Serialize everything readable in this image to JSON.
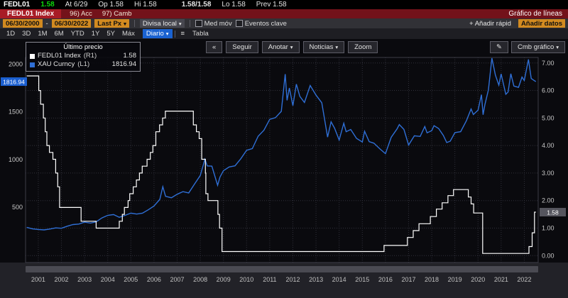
{
  "colors": {
    "amber": "#d28a20",
    "green": "#0bd90b",
    "function_bar_red": "#73121a",
    "accent_blue": "#1a62d1",
    "fedl01_line": "#ffffff",
    "xau_line": "#2f6fd6"
  },
  "top_bar": {
    "ticker": "FEDL01",
    "last": "1.58",
    "at": "At 6/29",
    "open": "Op 1.58",
    "high": "Hi 1.58",
    "bid_ask": "1.58/1.58",
    "low": "Lo 1.58",
    "prev": "Prev 1.58"
  },
  "function_bar": {
    "security_tab": "FEDL01 Index",
    "menu_acc": "96) Acc",
    "menu_camb": "97) Camb",
    "function_title": "Gráfico de líneas"
  },
  "settings_bar": {
    "date_from": "06/30/2000",
    "date_separator": "-",
    "date_to": "06/30/2022",
    "price_type": "Last Px",
    "currency": "Divisa local",
    "mov_avg_label": "Med móv",
    "key_events_label": "Eventos clave",
    "add_quick": "+ Añadir rápid",
    "add_data": "Añadir datos"
  },
  "period_bar": {
    "periods": [
      "1D",
      "3D",
      "1M",
      "6M",
      "YTD",
      "1Y",
      "5Y",
      "Máx"
    ],
    "frequency": "Diario",
    "view_icon": "≡",
    "table_label": "Tabla"
  },
  "chart_toolbar": {
    "collapse_icon": "«",
    "follow": "Seguir",
    "annotate": "Anotar",
    "news": "Noticias",
    "zoom": "Zoom",
    "edit_icon": "✎",
    "chart_type": "Cmb gráfico"
  },
  "legend": {
    "title": "Último precio",
    "rows": [
      {
        "label": "FEDL01 Index",
        "axis": "(R1)",
        "value": "1.58",
        "color": "#ffffff"
      },
      {
        "label": "XAU Curncy",
        "axis": "(L1)",
        "value": "1816.94",
        "color": "#2f6fd6"
      }
    ]
  },
  "chart_data": {
    "type": "line",
    "title": "FEDL01 Index vs XAU Curncy, 06/30/2000 - 06/30/2022, daily",
    "x_min": 2000.45,
    "x_max": 2022.6,
    "x_ticks": [
      2001,
      2002,
      2003,
      2004,
      2005,
      2006,
      2007,
      2008,
      2009,
      2010,
      2011,
      2012,
      2013,
      2014,
      2015,
      2016,
      2017,
      2018,
      2019,
      2020,
      2021,
      2022
    ],
    "left_axis": {
      "name": "XAU Curncy (L1)",
      "min": -80,
      "max": 2070,
      "ticks": [
        500,
        1000,
        1500,
        2000
      ]
    },
    "right_axis": {
      "name": "FEDL01 Index (R1)",
      "min": -0.25,
      "max": 7.2,
      "ticks": [
        0,
        1,
        2,
        3,
        4,
        5,
        6,
        7
      ]
    },
    "grid": true,
    "legend_position": "top-left",
    "series": [
      {
        "id": "xau",
        "name": "XAU Curncy (L1)",
        "axis": "left",
        "color": "#2f6fd6",
        "width": 1.4,
        "step": false,
        "x": [
          2000.5,
          2000.75,
          2001.0,
          2001.25,
          2001.5,
          2001.75,
          2002.0,
          2002.25,
          2002.5,
          2002.75,
          2003.0,
          2003.25,
          2003.5,
          2003.75,
          2004.0,
          2004.25,
          2004.5,
          2004.75,
          2005.0,
          2005.25,
          2005.5,
          2005.75,
          2006.0,
          2006.25,
          2006.38,
          2006.5,
          2006.75,
          2007.0,
          2007.25,
          2007.5,
          2007.75,
          2008.0,
          2008.2,
          2008.3,
          2008.5,
          2008.75,
          2008.85,
          2009.0,
          2009.25,
          2009.5,
          2009.75,
          2010.0,
          2010.25,
          2010.5,
          2010.75,
          2011.0,
          2011.25,
          2011.5,
          2011.67,
          2011.75,
          2011.85,
          2012.0,
          2012.15,
          2012.3,
          2012.5,
          2012.75,
          2013.0,
          2013.25,
          2013.5,
          2013.65,
          2013.8,
          2014.0,
          2014.2,
          2014.3,
          2014.5,
          2014.75,
          2015.0,
          2015.1,
          2015.3,
          2015.5,
          2015.75,
          2016.0,
          2016.25,
          2016.5,
          2016.6,
          2016.8,
          2017.0,
          2017.25,
          2017.5,
          2017.7,
          2017.8,
          2018.0,
          2018.1,
          2018.3,
          2018.5,
          2018.65,
          2018.8,
          2019.0,
          2019.25,
          2019.5,
          2019.7,
          2019.8,
          2020.0,
          2020.15,
          2020.22,
          2020.3,
          2020.45,
          2020.6,
          2020.75,
          2020.9,
          2021.0,
          2021.2,
          2021.3,
          2021.42,
          2021.55,
          2021.75,
          2021.9,
          2022.0,
          2022.18,
          2022.3,
          2022.42,
          2022.5
        ],
        "y": [
          289,
          273,
          267,
          262,
          271,
          283,
          279,
          301,
          318,
          323,
          343,
          334,
          346,
          388,
          415,
          423,
          395,
          415,
          438,
          428,
          437,
          473,
          513,
          582,
          715,
          614,
          599,
          636,
          663,
          650,
          743,
          833,
          1003,
          933,
          930,
          730,
          816,
          883,
          922,
          934,
          1008,
          1097,
          1115,
          1244,
          1307,
          1421,
          1439,
          1505,
          1895,
          1620,
          1750,
          1564,
          1790,
          1662,
          1598,
          1776,
          1675,
          1595,
          1235,
          1395,
          1329,
          1205,
          1380,
          1292,
          1315,
          1222,
          1184,
          1296,
          1187,
          1171,
          1114,
          1061,
          1233,
          1321,
          1366,
          1316,
          1152,
          1249,
          1242,
          1346,
          1280,
          1303,
          1355,
          1325,
          1253,
          1178,
          1192,
          1282,
          1292,
          1409,
          1530,
          1472,
          1517,
          1680,
          1470,
          1577,
          1730,
          2063,
          1886,
          1780,
          1898,
          1684,
          1708,
          1900,
          1770,
          1757,
          1865,
          1829,
          2050,
          1850,
          1830,
          1817
        ]
      },
      {
        "id": "fedl01",
        "name": "FEDL01 Index (R1)",
        "axis": "right",
        "color": "#ffffff",
        "width": 1.2,
        "step": true,
        "x": [
          2000.5,
          2001.02,
          2001.1,
          2001.22,
          2001.3,
          2001.37,
          2001.48,
          2001.63,
          2001.75,
          2001.84,
          2001.92,
          2002.85,
          2003.5,
          2004.5,
          2004.63,
          2004.72,
          2004.88,
          2004.95,
          2005.1,
          2005.24,
          2005.37,
          2005.49,
          2005.6,
          2005.7,
          2005.84,
          2005.95,
          2006.08,
          2006.24,
          2006.37,
          2006.49,
          2007.7,
          2007.83,
          2007.95,
          2008.06,
          2008.22,
          2008.24,
          2008.33,
          2008.76,
          2008.83,
          2008.94,
          2015.94,
          2016.95,
          2017.2,
          2017.45,
          2017.94,
          2018.2,
          2018.45,
          2018.7,
          2018.94,
          2019.58,
          2019.7,
          2019.81,
          2020.2,
          2022.2,
          2022.34,
          2022.44,
          2022.5
        ],
        "y": [
          6.53,
          6.0,
          5.5,
          5.0,
          4.5,
          4.0,
          3.75,
          3.5,
          3.0,
          2.5,
          1.75,
          1.25,
          1.0,
          1.25,
          1.5,
          1.75,
          2.0,
          2.25,
          2.5,
          2.75,
          3.0,
          3.25,
          3.25,
          3.5,
          3.75,
          4.0,
          4.5,
          4.75,
          5.0,
          5.25,
          4.75,
          4.5,
          4.25,
          3.5,
          3.0,
          2.25,
          2.0,
          1.5,
          1.0,
          0.15,
          0.37,
          0.66,
          0.91,
          1.16,
          1.42,
          1.69,
          1.92,
          2.18,
          2.4,
          2.13,
          1.88,
          1.55,
          0.08,
          0.33,
          0.83,
          1.58,
          1.58
        ]
      }
    ],
    "badges": [
      {
        "id": "xau-last",
        "text": "1816.94",
        "value": 1816.94,
        "axis": "left",
        "bg": "#1b5fd0"
      },
      {
        "id": "fedl01-last",
        "text": "1.58",
        "value": 1.58,
        "axis": "right",
        "bg": "#55555e"
      }
    ]
  }
}
